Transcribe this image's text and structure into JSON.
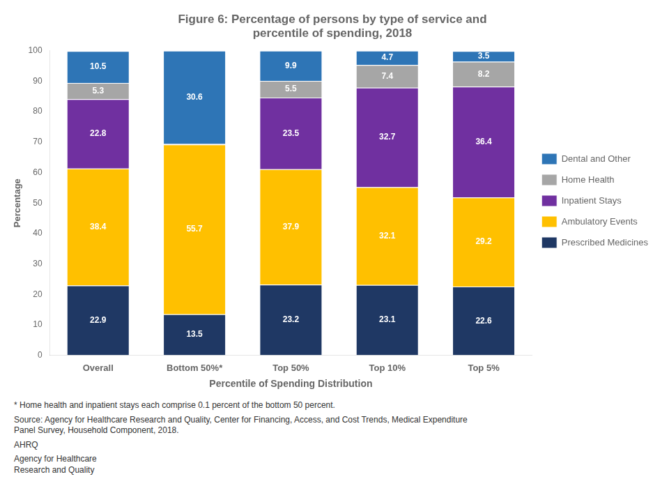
{
  "chart_data": {
    "type": "bar",
    "title": "Figure 6: Percentage of persons by type of service and\npercentile of spending, 2018",
    "categories": [
      "Overall",
      "Bottom 50%*",
      "Top 50%",
      "Top 10%",
      "Top 5%"
    ],
    "xlabel": "Percentile of Spending Distribution",
    "ylabel": "Percentage",
    "stacked": true,
    "grid": false,
    "legend": "right",
    "data_labels": true,
    "series": [
      {
        "name": "Prescribed Medicines",
        "color": "#1f3864",
        "values": [
          22.9,
          13.5,
          23.2,
          23.1,
          22.6
        ],
        "value_labels": [
          "22.9",
          "13.5",
          "23.2",
          "23.1",
          "22.6"
        ]
      },
      {
        "name": "Ambulatory Events",
        "color": "#ffc000",
        "values": [
          38.4,
          55.7,
          37.9,
          32.1,
          29.2
        ],
        "value_labels": [
          "38.4",
          "55.7",
          "37.9",
          "32.1",
          "29.2"
        ]
      },
      {
        "name": "Inpatient Stays",
        "color": "#7030a0",
        "values": [
          22.8,
          0.1,
          23.5,
          32.7,
          36.4
        ],
        "value_labels": [
          "22.8",
          null,
          "23.5",
          "32.7",
          "36.4"
        ]
      },
      {
        "name": "Home Health",
        "color": "#a6a6a6",
        "values": [
          5.3,
          0.1,
          5.5,
          7.4,
          8.2
        ],
        "value_labels": [
          "5.3",
          null,
          "5.5",
          "7.4",
          "8.2"
        ]
      },
      {
        "name": "Dental and Other",
        "color": "#2e75b6",
        "values": [
          10.5,
          30.6,
          9.9,
          4.7,
          3.5
        ],
        "value_labels": [
          "10.5",
          "30.6",
          "9.9",
          "4.7",
          "3.5"
        ]
      }
    ],
    "ylim": [
      0,
      100
    ],
    "yticks": [
      0,
      10,
      20,
      30,
      40,
      50,
      60,
      70,
      80,
      90,
      100
    ],
    "annotations": [
      "* Home health and inpatient stays each comprise 0.1 percent of the bottom 50 percent.",
      "Source: Agency for Healthcare Research and Quality, Center for Financing, Access, and Cost Trends, Medical Expenditure\nPanel Survey, Household Component, 2018.",
      "AHRQ",
      "Agency for Healthcare\nResearch and Quality"
    ]
  }
}
